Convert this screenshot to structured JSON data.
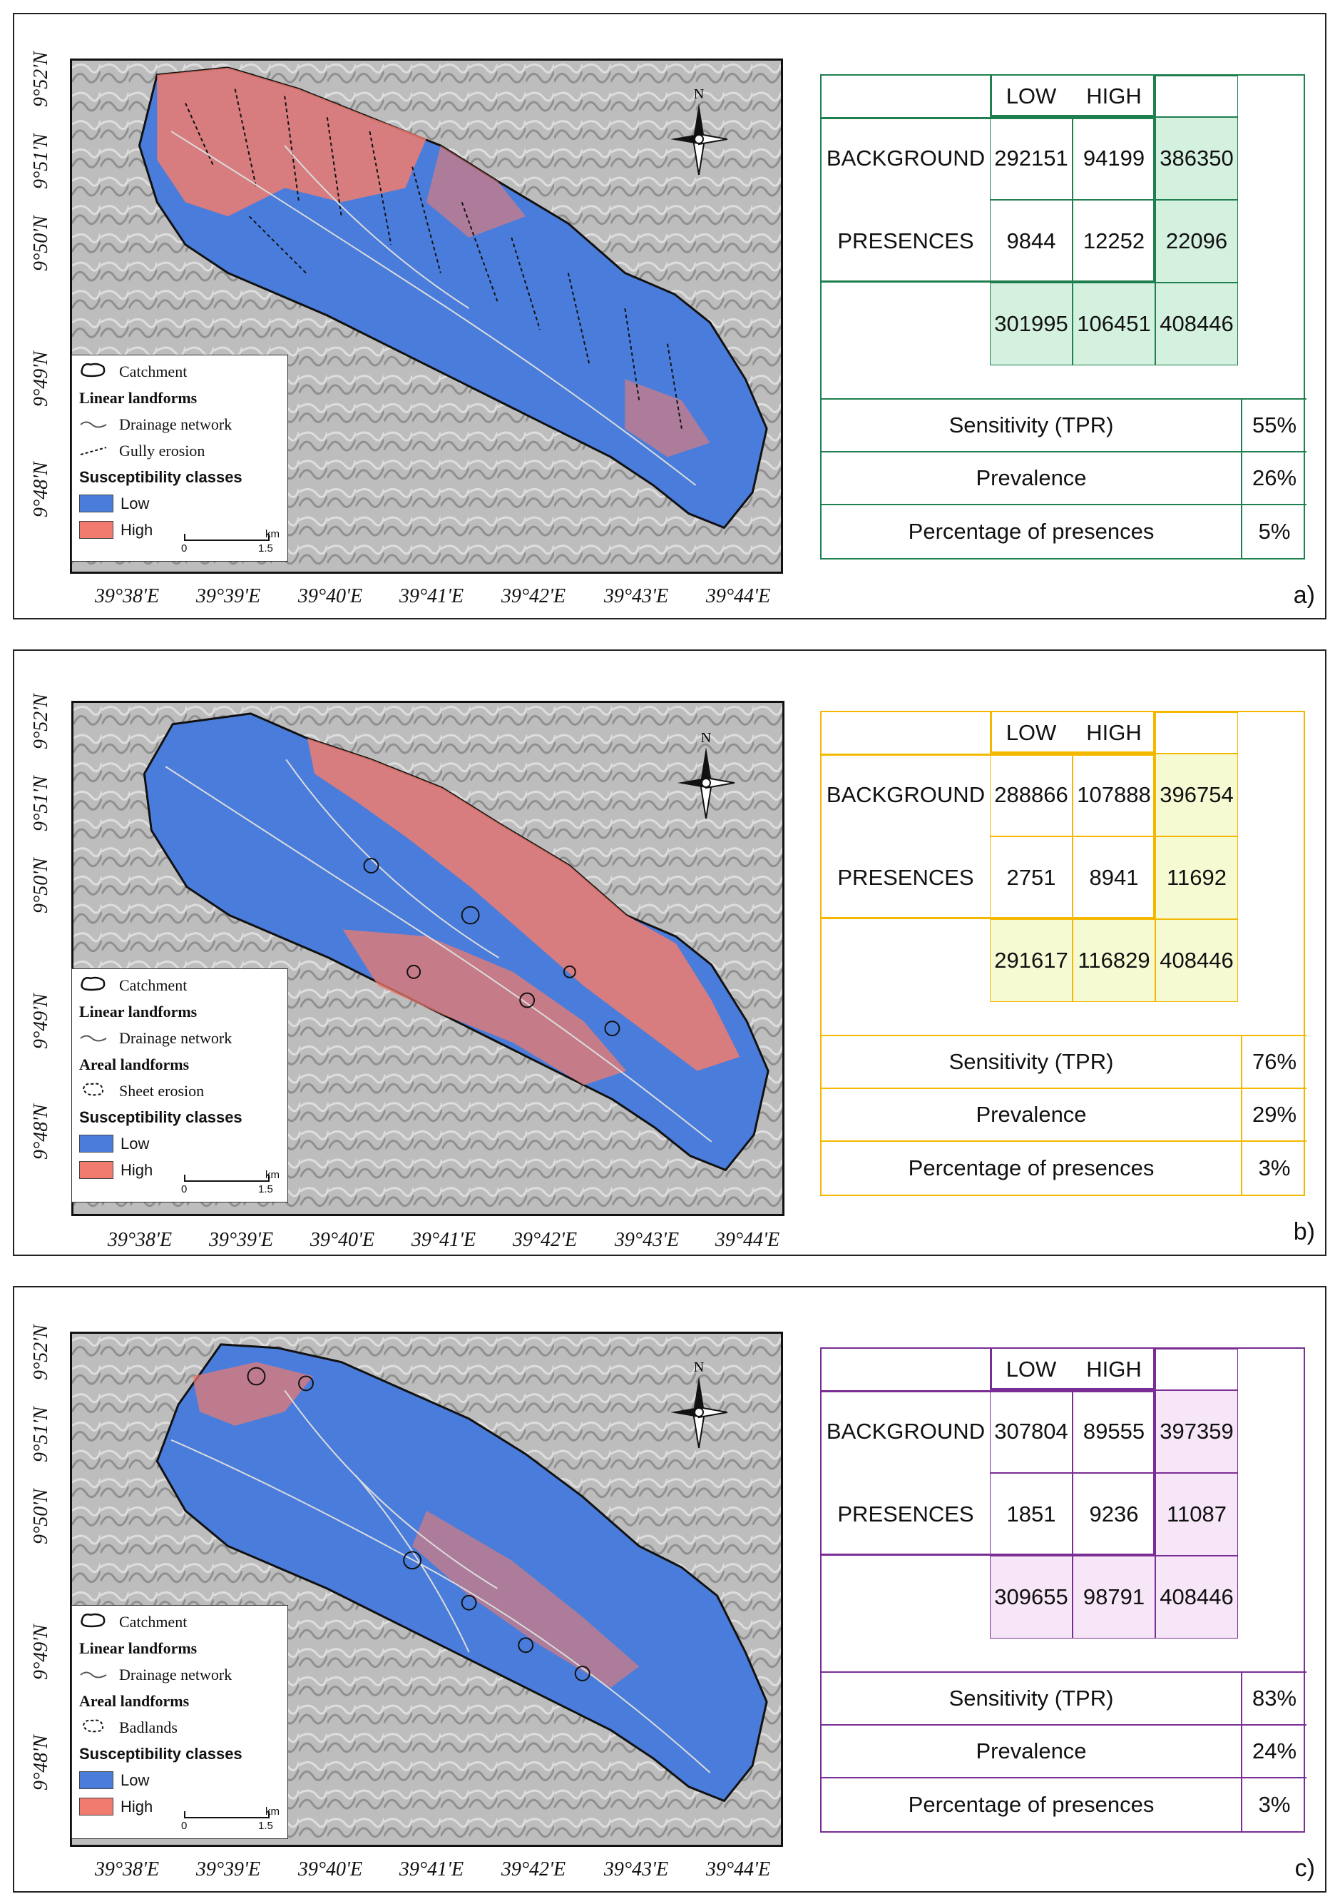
{
  "panels": [
    {
      "letter": "a)",
      "accent": "#1f7f4f",
      "fill": "#d4f1df",
      "legend": {
        "catchment": "Catchment",
        "linear_head": "Linear landforms",
        "drainage": "Drainage network",
        "second_head": "",
        "second_item": "Gully erosion",
        "susc_head": "Susceptibility classes",
        "low": "Low",
        "high": "High",
        "scale_zero": "0",
        "scale_end": "1.5",
        "scale_unit": "km"
      },
      "matrix": {
        "col_low": "LOW",
        "col_high": "HIGH",
        "row_bg": "BACKGROUND",
        "row_pr": "PRESENCES",
        "bg_low": "292151",
        "bg_high": "94199",
        "bg_total": "386350",
        "pr_low": "9844",
        "pr_high": "12252",
        "pr_total": "22096",
        "tot_low": "301995",
        "tot_high": "106451",
        "tot_all": "408446"
      },
      "stats": [
        {
          "label": "Sensitivity (TPR)",
          "value": "55%"
        },
        {
          "label": "Prevalence",
          "value": "26%"
        },
        {
          "label": "Percentage of presences",
          "value": "5%"
        }
      ]
    },
    {
      "letter": "b)",
      "accent": "#f5b800",
      "fill": "#f6fad2",
      "legend": {
        "catchment": "Catchment",
        "linear_head": "Linear landforms",
        "drainage": "Drainage network",
        "second_head": "Areal landforms",
        "second_item": "Sheet erosion",
        "susc_head": "Susceptibility classes",
        "low": "Low",
        "high": "High",
        "scale_zero": "0",
        "scale_end": "1.5",
        "scale_unit": "km"
      },
      "matrix": {
        "col_low": "LOW",
        "col_high": "HIGH",
        "row_bg": "BACKGROUND",
        "row_pr": "PRESENCES",
        "bg_low": "288866",
        "bg_high": "107888",
        "bg_total": "396754",
        "pr_low": "2751",
        "pr_high": "8941",
        "pr_total": "11692",
        "tot_low": "291617",
        "tot_high": "116829",
        "tot_all": "408446"
      },
      "stats": [
        {
          "label": "Sensitivity (TPR)",
          "value": "76%"
        },
        {
          "label": "Prevalence",
          "value": "29%"
        },
        {
          "label": "Percentage of presences",
          "value": "3%"
        }
      ]
    },
    {
      "letter": "c)",
      "accent": "#7a2d94",
      "fill": "#f7e6f7",
      "legend": {
        "catchment": "Catchment",
        "linear_head": "Linear landforms",
        "drainage": "Drainage network",
        "second_head": "Areal landforms",
        "second_item": "Badlands",
        "susc_head": "Susceptibility classes",
        "low": "Low",
        "high": "High",
        "scale_zero": "0",
        "scale_end": "1.5",
        "scale_unit": "km"
      },
      "matrix": {
        "col_low": "LOW",
        "col_high": "HIGH",
        "row_bg": "BACKGROUND",
        "row_pr": "PRESENCES",
        "bg_low": "307804",
        "bg_high": "89555",
        "bg_total": "397359",
        "pr_low": "1851",
        "pr_high": "9236",
        "pr_total": "11087",
        "tot_low": "309655",
        "tot_high": "98791",
        "tot_all": "408446"
      },
      "stats": [
        {
          "label": "Sensitivity (TPR)",
          "value": "83%"
        },
        {
          "label": "Prevalence",
          "value": "24%"
        },
        {
          "label": "Percentage of presences",
          "value": "3%"
        }
      ]
    }
  ],
  "lat_labels": [
    "9°52'N",
    "9°51'N",
    "9°50'N",
    "9°49'N",
    "9°48'N"
  ],
  "lon_labels": [
    "39°38'E",
    "39°39'E",
    "39°40'E",
    "39°41'E",
    "39°42'E",
    "39°43'E",
    "39°44'E"
  ],
  "north_label": "N",
  "colors": {
    "low": "#4a7ddb",
    "high": "#f07b6e",
    "hillshade": "#b9b9b9",
    "frame": "#111111"
  }
}
